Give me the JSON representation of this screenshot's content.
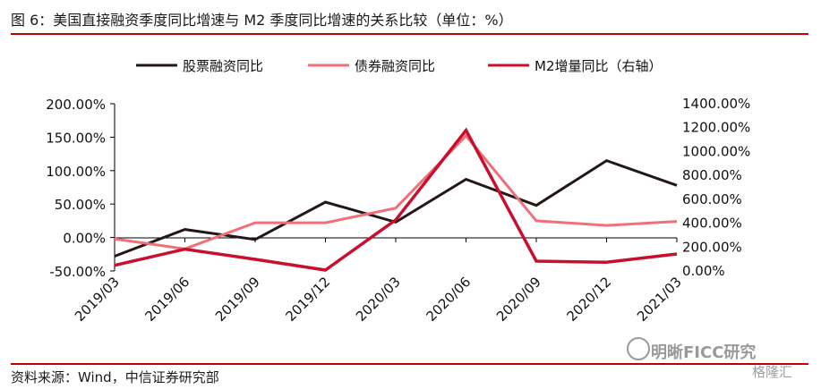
{
  "title": "图 6：美国直接融资季度同比增速与 M2 季度同比增速的关系比较（单位：%）",
  "source": "资料来源：Wind，中信证券研究部",
  "watermark": "明晰FICC研究",
  "watermark2": "格隆汇",
  "colors": {
    "rule": "#c00000"
  },
  "chart_data": {
    "type": "line",
    "categories": [
      "2019/03",
      "2019/06",
      "2019/09",
      "2019/12",
      "2020/03",
      "2020/06",
      "2020/09",
      "2020/12",
      "2021/03"
    ],
    "ylim_left": [
      -50,
      200
    ],
    "yticks_left": [
      "200.00%",
      "150.00%",
      "100.00%",
      "50.00%",
      "0.00%",
      "-50.00%"
    ],
    "ylim_right": [
      0,
      1400
    ],
    "yticks_right": [
      "1400.00%",
      "1200.00%",
      "1000.00%",
      "800.00%",
      "600.00%",
      "400.00%",
      "200.00%",
      "0.00%"
    ],
    "legend_position": "top",
    "series": [
      {
        "name": "股票融资同比",
        "color": "#231815",
        "axis": "left",
        "values": [
          -28,
          12,
          -3,
          53,
          23,
          87,
          48,
          115,
          78
        ]
      },
      {
        "name": "债券融资同比",
        "color": "#f0707a",
        "axis": "left",
        "values": [
          -2,
          -17,
          22,
          22,
          44,
          152,
          25,
          18,
          24
        ]
      },
      {
        "name": "M2增量同比（右轴）",
        "color": "#c8102e",
        "axis": "right",
        "values": [
          40,
          175,
          90,
          0,
          420,
          1170,
          75,
          65,
          135
        ]
      }
    ]
  }
}
